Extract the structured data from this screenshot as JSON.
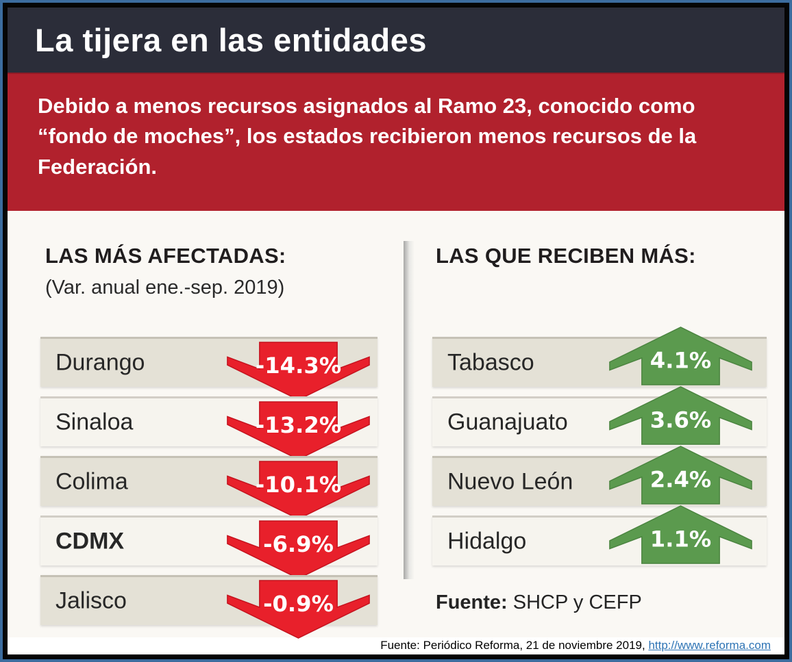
{
  "title": "La tijera en las entidades",
  "intro": "Debido a menos recursos asignados al Ramo 23, conocido como “fondo de moches”, los estados recibieron menos recursos de la Federación.",
  "sections": {
    "affected": {
      "heading": "LAS MÁS AFECTADAS:",
      "subheading": "(Var. anual ene.-sep. 2019)",
      "rows": [
        {
          "label": "Durango",
          "value": "-14.3%"
        },
        {
          "label": "Sinaloa",
          "value": "-13.2%"
        },
        {
          "label": "Colima",
          "value": "-10.1%"
        },
        {
          "label": "CDMX",
          "value": "-6.9%",
          "bold": true
        },
        {
          "label": "Jalisco",
          "value": "-0.9%"
        }
      ]
    },
    "receiving": {
      "heading": "LAS QUE RECIBEN MÁS:",
      "rows": [
        {
          "label": "Tabasco",
          "value": "4.1%"
        },
        {
          "label": "Guanajuato",
          "value": "3.6%"
        },
        {
          "label": "Nuevo León",
          "value": "2.4%"
        },
        {
          "label": "Hidalgo",
          "value": "1.1%"
        }
      ]
    }
  },
  "source_note": {
    "label": "Fuente:",
    "text": " SHCP y CEFP"
  },
  "caption": {
    "text": "Fuente: Periódico Reforma, 21 de noviembre 2019, ",
    "link_text": "http://www.reforma.com"
  },
  "colors": {
    "title_bar": "#2b2d39",
    "intro_red": "#b1212d",
    "arrow_red": "#e8202b",
    "arrow_red_stroke": "#c4121e",
    "arrow_green": "#5b9a4e",
    "arrow_green_stroke": "#4b8440",
    "link_blue": "#2e74b5",
    "row_beige": "#e4e1d6",
    "row_light": "#f6f4ee"
  },
  "chart_data": [
    {
      "type": "bar",
      "title": "LAS MÁS AFECTADAS: (Var. anual ene.-sep. 2019)",
      "categories": [
        "Durango",
        "Sinaloa",
        "Colima",
        "CDMX",
        "Jalisco"
      ],
      "values": [
        -14.3,
        -13.2,
        -10.1,
        -6.9,
        -0.9
      ],
      "unit": "%",
      "direction": "down",
      "marker": "red-down-arrow"
    },
    {
      "type": "bar",
      "title": "LAS QUE RECIBEN MÁS:",
      "categories": [
        "Tabasco",
        "Guanajuato",
        "Nuevo León",
        "Hidalgo"
      ],
      "values": [
        4.1,
        3.6,
        2.4,
        1.1
      ],
      "unit": "%",
      "direction": "up",
      "marker": "green-up-arrow"
    }
  ]
}
